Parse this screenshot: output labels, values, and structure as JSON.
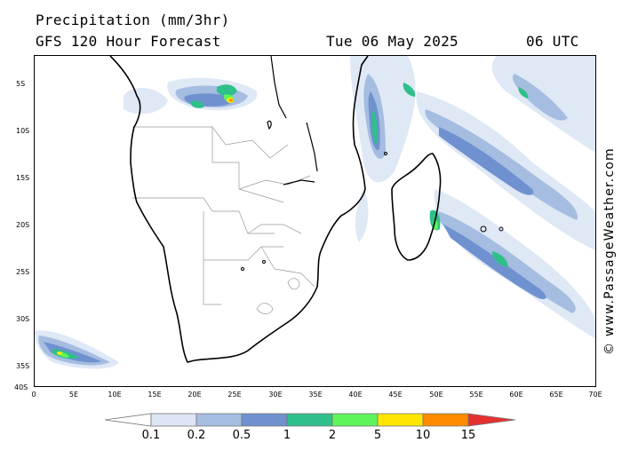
{
  "header": {
    "title": "Precipitation (mm/3hr)",
    "model": "GFS 120 Hour Forecast",
    "date": "Tue 06 May 2025",
    "time": "06 UTC"
  },
  "credit": "© www.PassageWeather.com",
  "map": {
    "region": "Southern Africa and Madagascar",
    "lat_labels": [
      "5S",
      "10S",
      "15S",
      "20S",
      "25S",
      "30S",
      "35S",
      "40S"
    ],
    "lon_labels": [
      "0",
      "5E",
      "10E",
      "15E",
      "20E",
      "25E",
      "30E",
      "35E",
      "40E",
      "45E",
      "50E",
      "55E",
      "60E",
      "65E",
      "70E"
    ],
    "lat_range": [
      -2,
      -40
    ],
    "lon_range": [
      0,
      70
    ],
    "colors": {
      "coast": "#000000",
      "border": "#999999"
    }
  },
  "legend": {
    "labels": [
      "0.1",
      "0.2",
      "0.5",
      "1",
      "2",
      "5",
      "10",
      "15"
    ],
    "colors": [
      "#ffffff",
      "#dce6f5",
      "#a5bde0",
      "#6f91d0",
      "#2fbf8a",
      "#5ef55a",
      "#ffe600",
      "#ff8c00",
      "#e63030"
    ]
  }
}
